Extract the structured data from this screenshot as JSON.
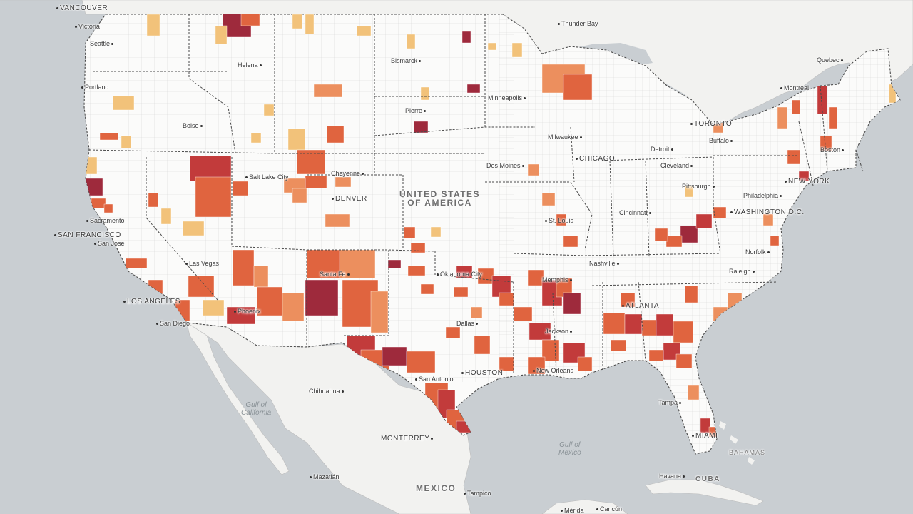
{
  "map": {
    "colors": {
      "water": "#c9ced2",
      "land": "#f5f5f3",
      "us_land": "#fbfbfa",
      "county_border": "#d6d6d6",
      "state_border": "#4a4a4a",
      "level_1": "#f2c27a",
      "level_2": "#ec8f5e",
      "level_3": "#e0643f",
      "level_4": "#c23b3b",
      "level_5": "#9e2a3c"
    },
    "country_labels": {
      "usa": "UNITED STATES\nOF AMERICA",
      "mexico": "MEXICO",
      "cuba": "CUBA",
      "bahamas": "BAHAMAS"
    },
    "sea_labels": {
      "gulf_california": "Gulf of\nCalifornia",
      "gulf_mexico": "Gulf of\nMexico"
    },
    "cities": [
      {
        "name": "VANCOUVER",
        "big": true
      },
      {
        "name": "Victoria"
      },
      {
        "name": "Seattle"
      },
      {
        "name": "Portland"
      },
      {
        "name": "Helena"
      },
      {
        "name": "Bismarck"
      },
      {
        "name": "Thunder Bay"
      },
      {
        "name": "Quebec"
      },
      {
        "name": "Montreal"
      },
      {
        "name": "Minneapolis"
      },
      {
        "name": "Pierre"
      },
      {
        "name": "Boise"
      },
      {
        "name": "TORONTO",
        "big": true
      },
      {
        "name": "Buffalo"
      },
      {
        "name": "Milwaukee"
      },
      {
        "name": "Detroit"
      },
      {
        "name": "CHICAGO",
        "big": true
      },
      {
        "name": "Boston"
      },
      {
        "name": "Cheyenne"
      },
      {
        "name": "Salt Lake City"
      },
      {
        "name": "Des Moines"
      },
      {
        "name": "Cleveland"
      },
      {
        "name": "NEW YORK",
        "big": true
      },
      {
        "name": "Pittsburgh"
      },
      {
        "name": "Philadelphia"
      },
      {
        "name": "DENVER",
        "big": true
      },
      {
        "name": "Sacramento"
      },
      {
        "name": "SAN FRANCISCO",
        "big": true
      },
      {
        "name": "San Jose"
      },
      {
        "name": "St. Louis"
      },
      {
        "name": "WASHINGTON D.C.",
        "big": true
      },
      {
        "name": "Cincinnati"
      },
      {
        "name": "Norfolk"
      },
      {
        "name": "Las Vegas"
      },
      {
        "name": "Santa Fe"
      },
      {
        "name": "Oklahoma City"
      },
      {
        "name": "Nashville"
      },
      {
        "name": "Raleigh"
      },
      {
        "name": "Memphis"
      },
      {
        "name": "LOS ANGELES",
        "big": true
      },
      {
        "name": "ATLANTA",
        "big": true
      },
      {
        "name": "Phoenix"
      },
      {
        "name": "San Diego"
      },
      {
        "name": "Dallas"
      },
      {
        "name": "Jackson"
      },
      {
        "name": "HOUSTON",
        "big": true
      },
      {
        "name": "New Orleans"
      },
      {
        "name": "San Antonio"
      },
      {
        "name": "Chihuahua"
      },
      {
        "name": "Tampa"
      },
      {
        "name": "MIAMI",
        "big": true
      },
      {
        "name": "MONTERREY",
        "big": true
      },
      {
        "name": "Mazatlán"
      },
      {
        "name": "Havana"
      },
      {
        "name": "Tampico"
      },
      {
        "name": "Mérida"
      },
      {
        "name": "Cancún"
      }
    ]
  }
}
